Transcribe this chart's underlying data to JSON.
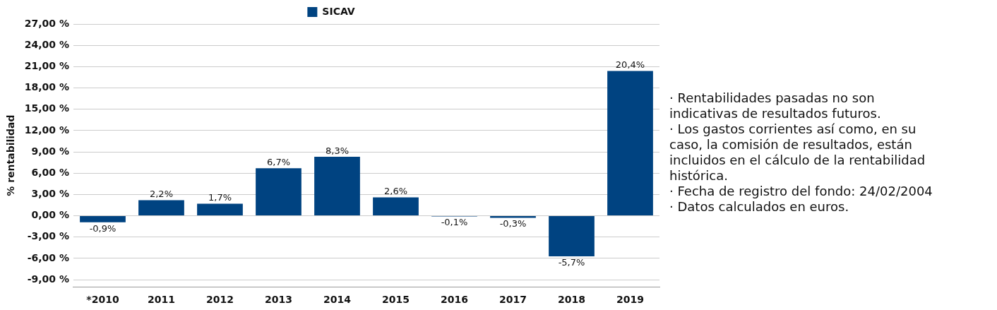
{
  "chart_data": {
    "type": "bar",
    "ylabel": "% rentabilidad",
    "categories": [
      "*2010",
      "2011",
      "2012",
      "2013",
      "2014",
      "2015",
      "2016",
      "2017",
      "2018",
      "2019"
    ],
    "series": [
      {
        "name": "SICAV",
        "color": "#004381",
        "values": [
          -0.9,
          2.2,
          1.7,
          6.7,
          8.3,
          2.6,
          -0.1,
          -0.3,
          -5.7,
          20.4
        ],
        "value_labels": [
          "-0,9%",
          "2,2%",
          "1,7%",
          "6,7%",
          "8,3%",
          "2,6%",
          "-0,1%",
          "-0,3%",
          "-5,7%",
          "20,4%"
        ]
      }
    ],
    "ylim": [
      -10,
      27
    ],
    "yticks": [
      {
        "value": -9,
        "label": "-9,00 %"
      },
      {
        "value": -6,
        "label": "-6,00 %"
      },
      {
        "value": -3,
        "label": "-3,00 %"
      },
      {
        "value": 0,
        "label": "0,00 %"
      },
      {
        "value": 3,
        "label": "3,00 %"
      },
      {
        "value": 6,
        "label": "6,00 %"
      },
      {
        "value": 9,
        "label": "9,00 %"
      },
      {
        "value": 12,
        "label": "12,00 %"
      },
      {
        "value": 15,
        "label": "15,00 %"
      },
      {
        "value": 18,
        "label": "18,00 %"
      },
      {
        "value": 21,
        "label": "21,00 %"
      },
      {
        "value": 24,
        "label": "24,00 %"
      },
      {
        "value": 27,
        "label": "27,00 %"
      }
    ],
    "grid": "y",
    "legend": "top",
    "annotations": [
      "· Rentabilidades pasadas no son indicativas de resultados futuros.",
      "· Los gastos corrientes así como, en su caso, la comisión de resultados, están incluidos en el cálculo de la rentabilidad histórica.",
      "· Fecha de registro del fondo: 24/02/2004",
      "· Datos calculados en euros."
    ]
  }
}
